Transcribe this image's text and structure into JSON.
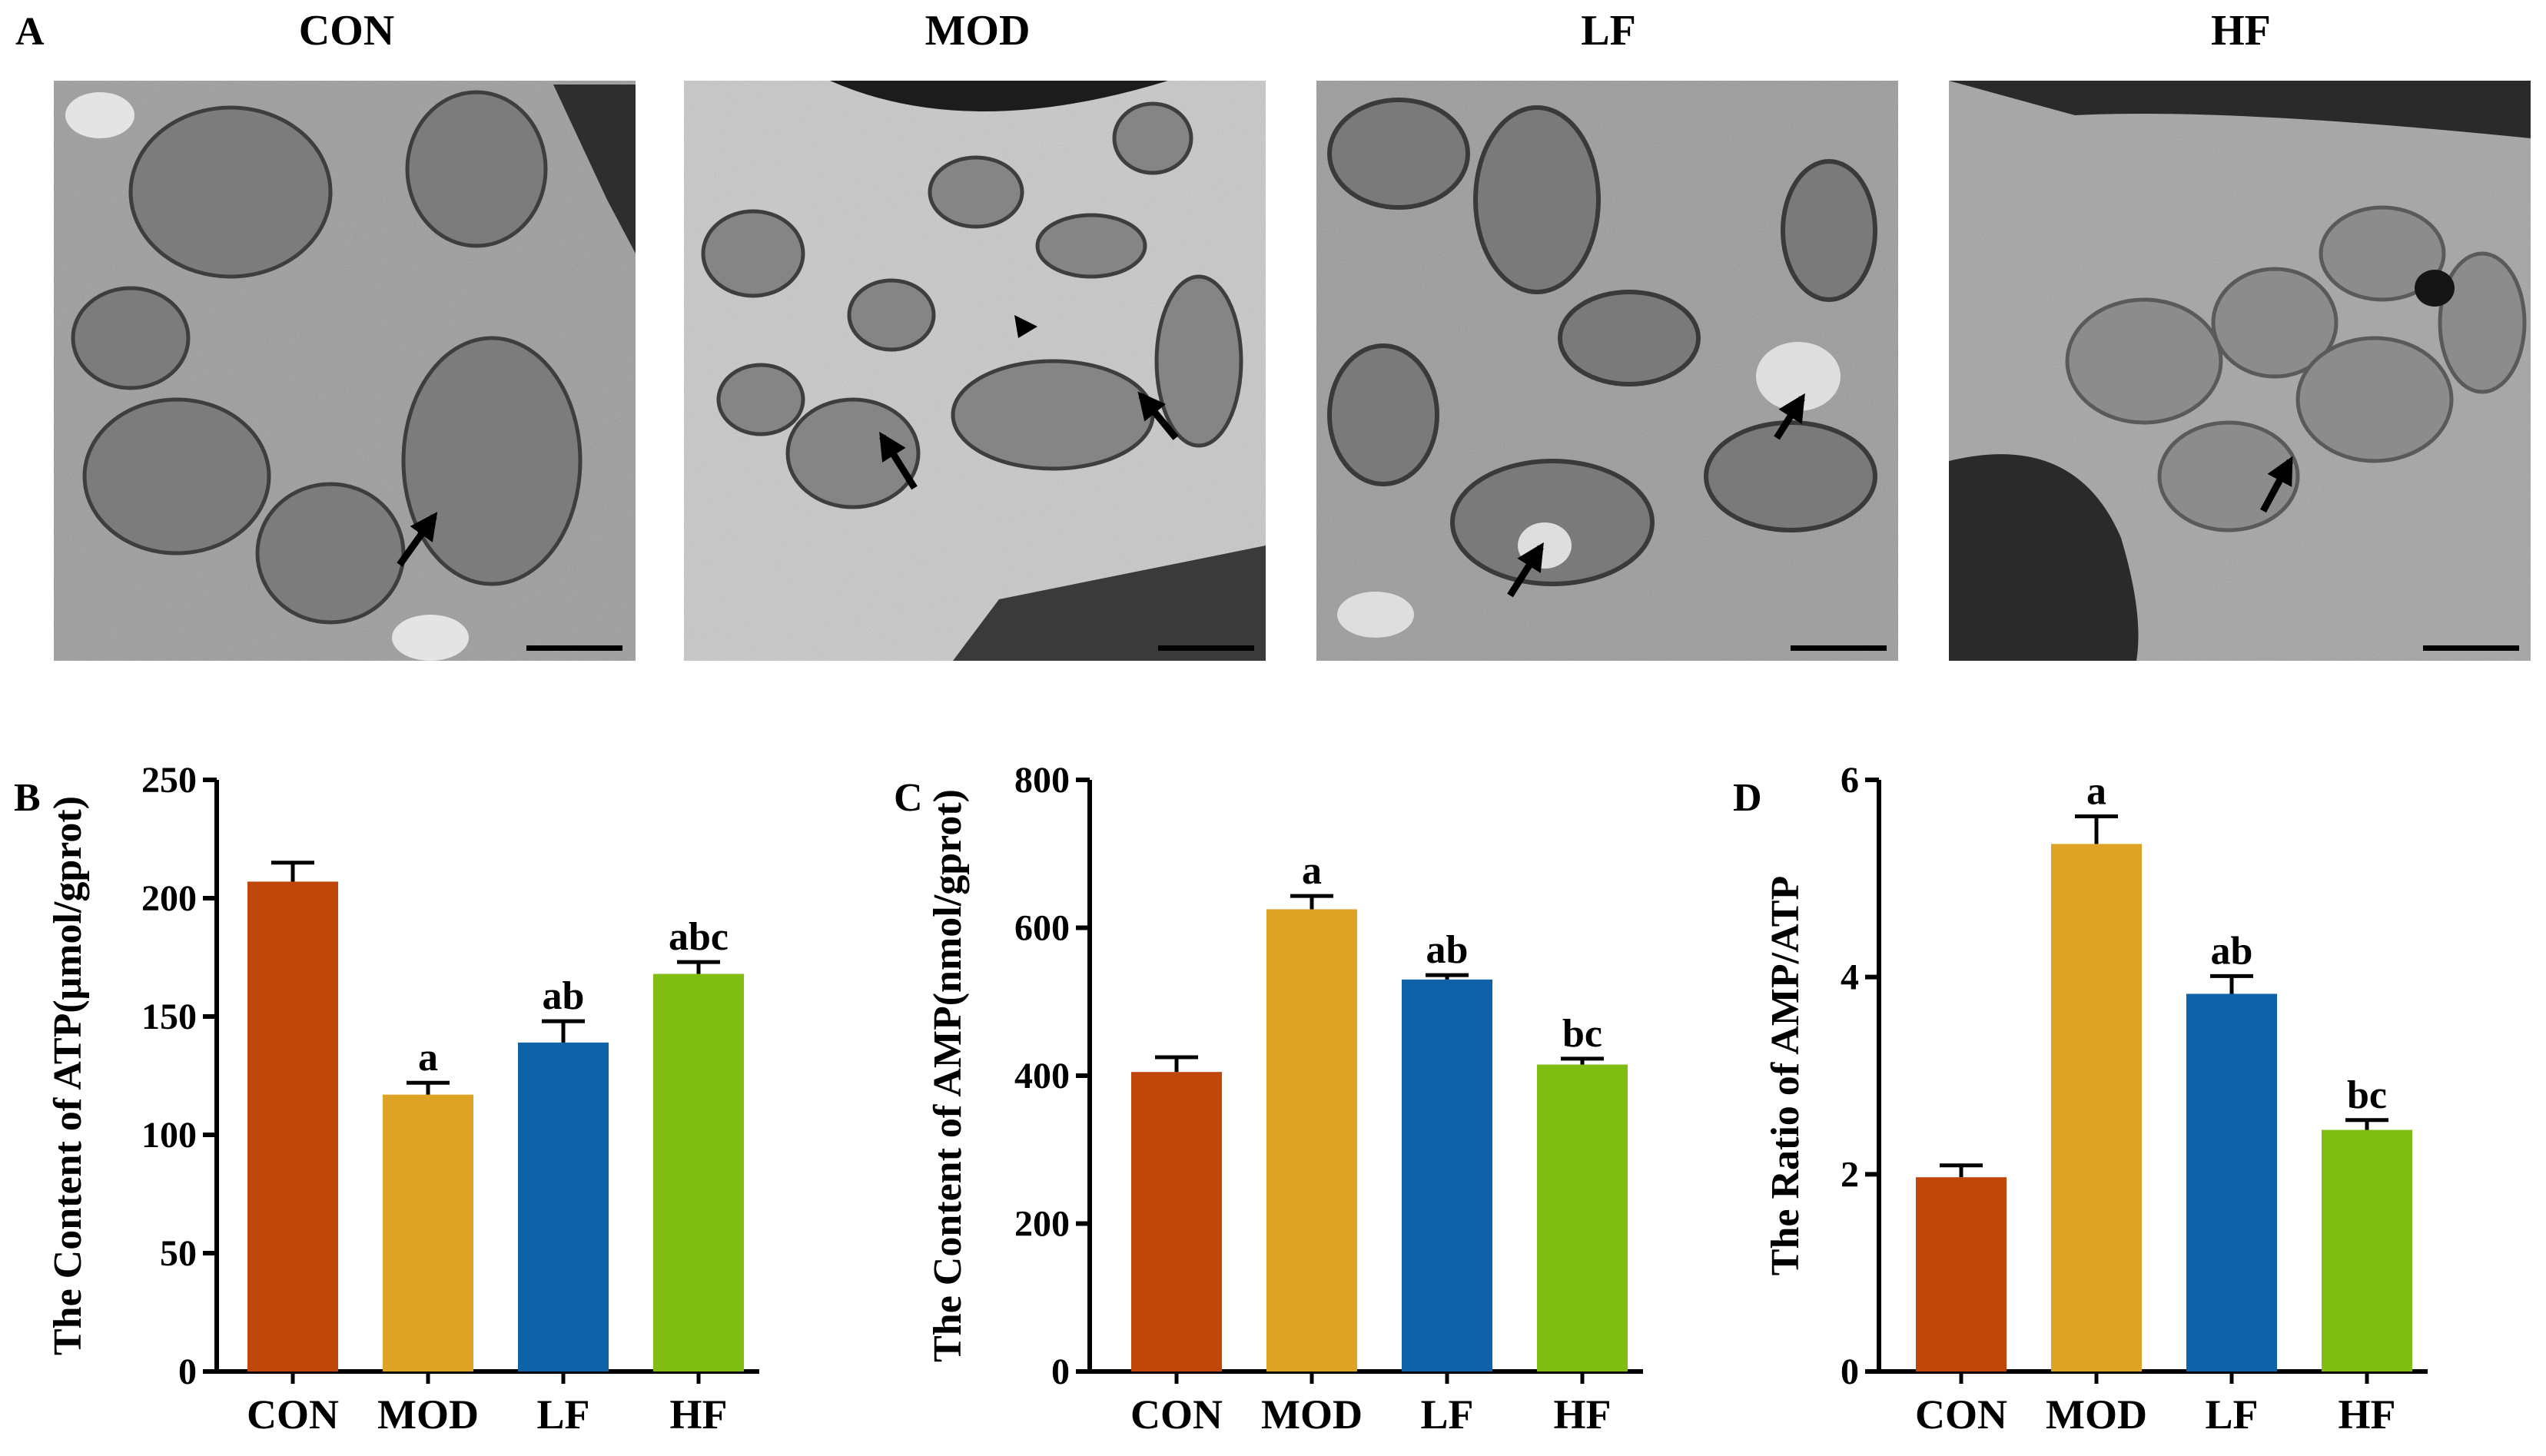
{
  "figure": {
    "panel_a": {
      "label": "A",
      "micrographs": [
        {
          "group": "CON"
        },
        {
          "group": "MOD"
        },
        {
          "group": "LF"
        },
        {
          "group": "HF"
        }
      ]
    }
  },
  "colors": {
    "CON": "#c0470a",
    "MOD": "#dea224",
    "LF": "#0e63a8",
    "HF": "#7fbd11"
  },
  "chart_data": [
    {
      "panel": "B",
      "type": "bar",
      "categories": [
        "CON",
        "MOD",
        "LF",
        "HF"
      ],
      "values": [
        207,
        117,
        139,
        168
      ],
      "errors": [
        8,
        5,
        9,
        5
      ],
      "significance": [
        "",
        "a",
        "ab",
        "abc"
      ],
      "ylabel": "The Content of ATP(μmol/gprot)",
      "ylim": [
        0,
        250
      ],
      "yticks": [
        0,
        50,
        100,
        150,
        200,
        250
      ]
    },
    {
      "panel": "C",
      "type": "bar",
      "categories": [
        "CON",
        "MOD",
        "LF",
        "HF"
      ],
      "values": [
        405,
        625,
        530,
        415
      ],
      "errors": [
        20,
        18,
        6,
        8
      ],
      "significance": [
        "",
        "a",
        "ab",
        "bc"
      ],
      "ylabel": "The Content of AMP(nmol/gprot)",
      "ylim": [
        0,
        800
      ],
      "yticks": [
        0,
        200,
        400,
        600,
        800
      ]
    },
    {
      "panel": "D",
      "type": "bar",
      "categories": [
        "CON",
        "MOD",
        "LF",
        "HF"
      ],
      "values": [
        1.97,
        5.35,
        3.83,
        2.45
      ],
      "errors": [
        0.12,
        0.28,
        0.18,
        0.1
      ],
      "significance": [
        "",
        "a",
        "ab",
        "bc"
      ],
      "ylabel": "The Ratio of AMP/ATP",
      "ylim": [
        0,
        6
      ],
      "yticks": [
        0,
        2,
        4,
        6
      ]
    }
  ]
}
